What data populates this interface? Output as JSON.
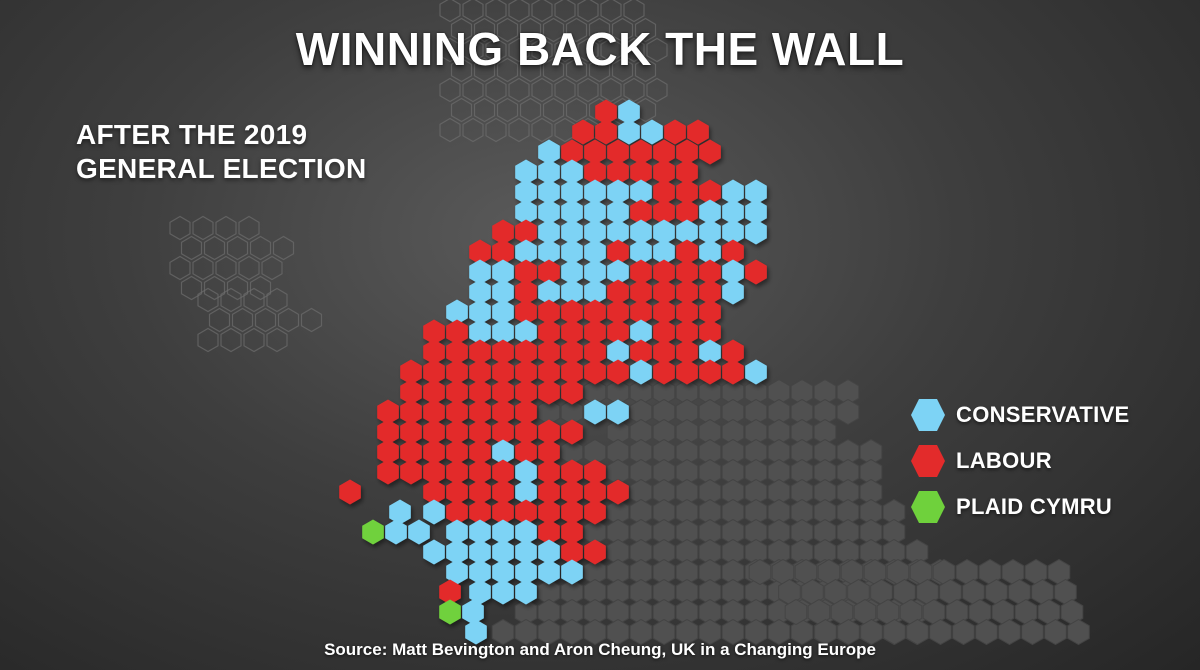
{
  "title": "WINNING BACK THE WALL",
  "subtitle_lines": [
    "AFTER THE 2019",
    "GENERAL ELECTION"
  ],
  "legend": [
    {
      "label": "CONSERVATIVE",
      "party": "con"
    },
    {
      "label": "LABOUR",
      "party": "lab"
    },
    {
      "label": "PLAID CYMRU",
      "party": "pc"
    }
  ],
  "colors": {
    "con": "#7dd3f5",
    "lab": "#e32b2b",
    "pc": "#6fd13c",
    "other": "#505050",
    "background_hex": "#5e5e5e"
  },
  "source": "Source: Matt Bevington and Aron Cheung, UK in a Changing Europe"
}
